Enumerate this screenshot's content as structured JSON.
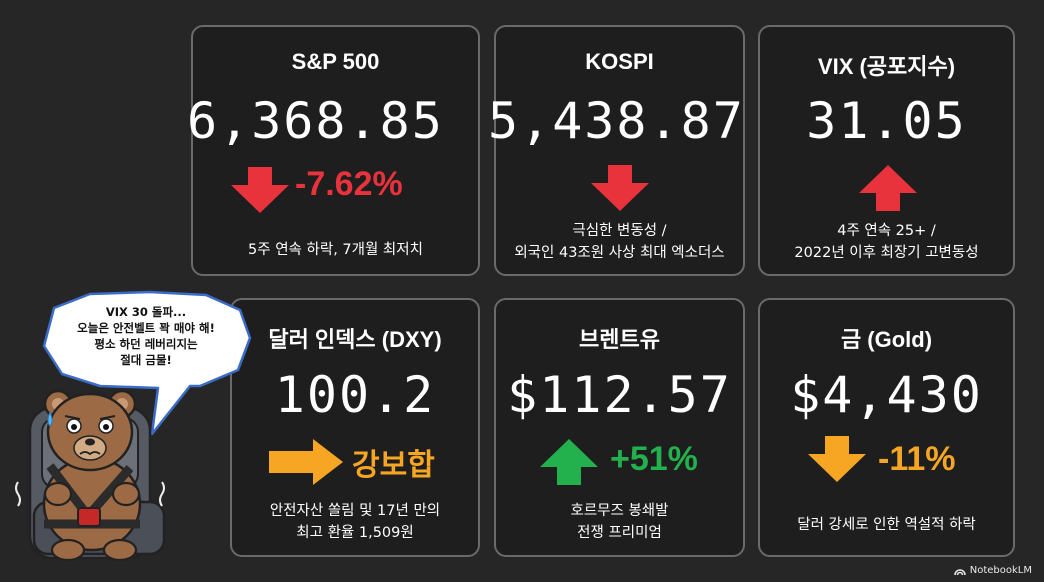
{
  "cards": {
    "sp500": {
      "title": "S&P 500",
      "value": "6,368.85",
      "change": "-7.62%",
      "direction": "down",
      "note": [
        "5주 연속 하락, 7개월 최저치"
      ]
    },
    "kospi": {
      "title": "KOSPI",
      "value": "5,438.87",
      "direction": "down",
      "note": [
        "극심한 변동성 /",
        "외국인 43조원 사상 최대 엑소더스"
      ]
    },
    "vix": {
      "title": "VIX (공포지수)",
      "value": "31.05",
      "direction": "up",
      "note": [
        "4주 연속 25+ /",
        "2022년 이후 최장기 고변동성"
      ]
    },
    "dxy": {
      "title": "달러 인덱스 (DXY)",
      "value": "100.2",
      "change": "강보합",
      "direction": "right",
      "note": [
        "안전자산 쏠림 및 17년 만의",
        "최고 환율 1,509원"
      ]
    },
    "brent": {
      "title": "브렌트유",
      "value": "$112.57",
      "change": "+51%",
      "direction": "up",
      "note": [
        "호르무즈 봉쇄발",
        "전쟁 프리미엄"
      ]
    },
    "gold": {
      "title": "금 (Gold)",
      "value": "$4,430",
      "change": "-11%",
      "direction": "down",
      "note": [
        "달러 강세로 인한 역설적 하락"
      ]
    }
  },
  "bubble": {
    "lines": [
      "VIX 30 돌파...",
      "오늘은 안전벨트 꽉 매야 해!",
      "평소 하던 레버리지는",
      "절대 금물!"
    ]
  },
  "branding": {
    "label": "NotebookLM"
  },
  "colors": {
    "red": "#e8323c",
    "green": "#22b14c",
    "orange": "#f6a623",
    "background": "#262626",
    "border": "#6a6a6a"
  }
}
